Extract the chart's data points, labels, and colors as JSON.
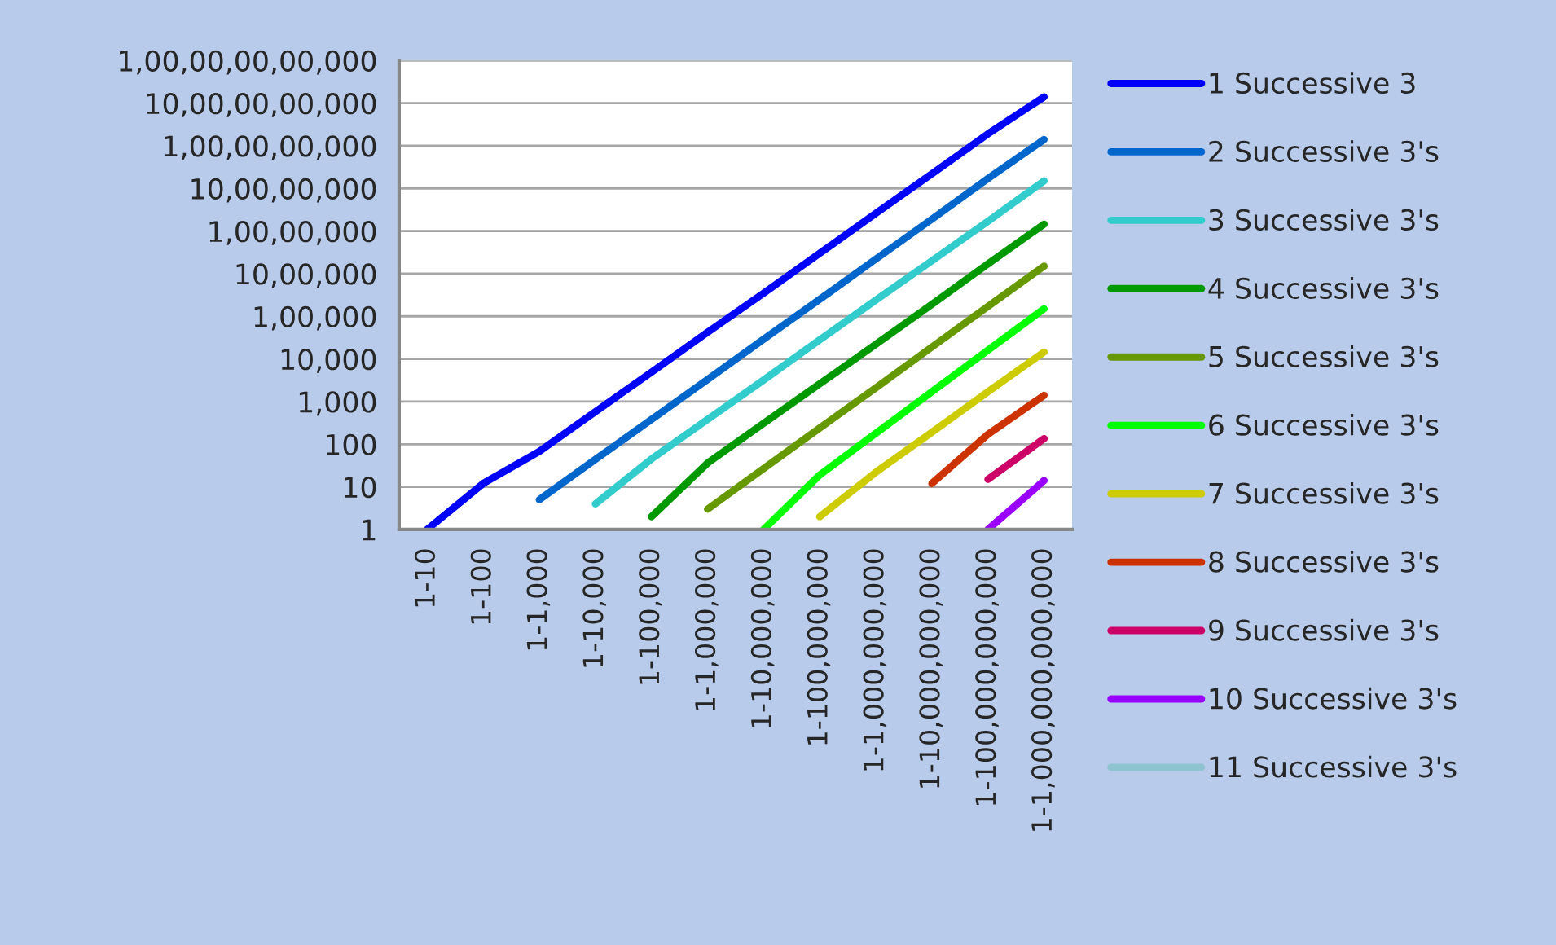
{
  "chart_data": {
    "type": "line",
    "categories": [
      "1-10",
      "1-100",
      "1-1,000",
      "1-10,000",
      "1-100,000",
      "1-1,000,000",
      "1-10,000,000",
      "1-100,000,000",
      "1-1,000,000,000",
      "1-10,000,000,000",
      "1-100,000,000,000",
      "1-1,000,000,000,000"
    ],
    "series": [
      {
        "name": "1 Successive 3",
        "color": "#0000ff",
        "values": [
          1,
          12,
          68,
          580,
          4900,
          42000,
          350000,
          3000000,
          26000000,
          220000000,
          1900000000,
          14000000000
        ]
      },
      {
        "name": "2 Successive 3's",
        "color": "#0066cc",
        "values": [
          null,
          null,
          5,
          44,
          380,
          3300,
          29000,
          250000,
          2200000,
          19000000,
          170000000,
          1400000000
        ]
      },
      {
        "name": "3 Successive 3's",
        "color": "#33cccc",
        "values": [
          null,
          null,
          null,
          4,
          45,
          380,
          3200,
          28000,
          240000,
          2000000,
          17000000,
          150000000
        ]
      },
      {
        "name": "4 Successive 3's",
        "color": "#009900",
        "values": [
          null,
          null,
          null,
          null,
          2,
          36,
          310,
          2600,
          22000,
          190000,
          1700000,
          14500000
        ]
      },
      {
        "name": "5 Successive 3's",
        "color": "#669900",
        "values": [
          null,
          null,
          null,
          null,
          null,
          3,
          27,
          240,
          2100,
          19000,
          170000,
          1500000
        ]
      },
      {
        "name": "6 Successive 3's",
        "color": "#00ff00",
        "values": [
          null,
          null,
          null,
          null,
          null,
          null,
          1,
          19,
          180,
          1700,
          16000,
          150000
        ]
      },
      {
        "name": "7 Successive 3's",
        "color": "#cccc00",
        "values": [
          null,
          null,
          null,
          null,
          null,
          null,
          null,
          2,
          22,
          190,
          1700,
          14500
        ]
      },
      {
        "name": "8 Successive 3's",
        "color": "#cc3300",
        "values": [
          null,
          null,
          null,
          null,
          null,
          null,
          null,
          null,
          null,
          12,
          170,
          1400
        ]
      },
      {
        "name": "9 Successive 3's",
        "color": "#cc0066",
        "values": [
          null,
          null,
          null,
          null,
          null,
          null,
          null,
          null,
          null,
          null,
          15,
          135
        ]
      },
      {
        "name": "10 Successive 3's",
        "color": "#9900ff",
        "values": [
          null,
          null,
          null,
          null,
          null,
          null,
          null,
          null,
          null,
          null,
          1,
          14
        ]
      },
      {
        "name": "11 Successive 3's",
        "color": "#8fc3d0",
        "values": [
          null,
          null,
          null,
          null,
          null,
          null,
          null,
          null,
          null,
          null,
          null,
          null
        ]
      }
    ],
    "log": "y",
    "ylim": [
      1,
      100000000000
    ],
    "yticks": [
      1,
      10,
      100,
      {
        "value": 1000,
        "label": "1,000"
      },
      {
        "value": 10000,
        "label": "10,000"
      },
      {
        "value": 100000,
        "label": "1,00,000"
      },
      {
        "value": 1000000,
        "label": "10,00,000"
      },
      {
        "value": 10000000,
        "label": "1,00,00,000"
      },
      {
        "value": 100000000,
        "label": "10,00,00,000"
      },
      {
        "value": 1000000000,
        "label": "1,00,00,00,000"
      },
      {
        "value": 10000000000,
        "label": "10,00,00,00,000"
      },
      {
        "value": 100000000000,
        "label": "1,00,00,00,00,000"
      }
    ],
    "grid": "y",
    "legend": "right",
    "line_style": "solid",
    "marker": "none"
  }
}
